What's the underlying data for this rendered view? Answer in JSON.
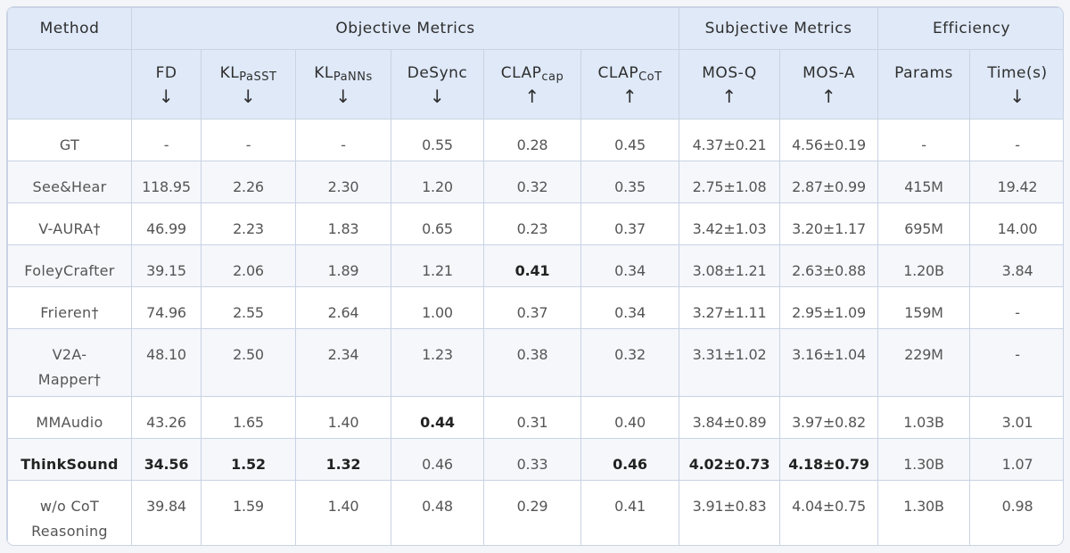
{
  "header": {
    "method": "Method",
    "groups": {
      "objective": "Objective Metrics",
      "subjective": "Subjective Metrics",
      "efficiency": "Efficiency"
    },
    "columns": [
      {
        "base": "FD",
        "sub": "",
        "arrow": "↓"
      },
      {
        "base": "KL",
        "sub": "PaSST",
        "arrow": "↓"
      },
      {
        "base": "KL",
        "sub": "PaNNs",
        "arrow": "↓"
      },
      {
        "base": "DeSync",
        "sub": "",
        "arrow": "↓"
      },
      {
        "base": "CLAP",
        "sub": "cap",
        "arrow": "↑"
      },
      {
        "base": "CLAP",
        "sub": "CoT",
        "arrow": "↑"
      },
      {
        "base": "MOS-Q",
        "sub": "",
        "arrow": "↑"
      },
      {
        "base": "MOS-A",
        "sub": "",
        "arrow": "↑"
      },
      {
        "base": "Params",
        "sub": "",
        "arrow": ""
      },
      {
        "base": "Time(s)",
        "sub": "",
        "arrow": "↓"
      }
    ]
  },
  "rows": [
    {
      "method": "GT",
      "values": [
        "-",
        "-",
        "-",
        "0.55",
        "0.28",
        "0.45",
        "4.37±0.21",
        "4.56±0.19",
        "-",
        "-"
      ],
      "bold": []
    },
    {
      "method": "See&Hear",
      "values": [
        "118.95",
        "2.26",
        "2.30",
        "1.20",
        "0.32",
        "0.35",
        "2.75±1.08",
        "2.87±0.99",
        "415M",
        "19.42"
      ],
      "bold": []
    },
    {
      "method": "V-AURA†",
      "values": [
        "46.99",
        "2.23",
        "1.83",
        "0.65",
        "0.23",
        "0.37",
        "3.42±1.03",
        "3.20±1.17",
        "695M",
        "14.00"
      ],
      "bold": []
    },
    {
      "method": "FoleyCrafter",
      "values": [
        "39.15",
        "2.06",
        "1.89",
        "1.21",
        "0.41",
        "0.34",
        "3.08±1.21",
        "2.63±0.88",
        "1.20B",
        "3.84"
      ],
      "bold": [
        4
      ]
    },
    {
      "method": "Frieren†",
      "values": [
        "74.96",
        "2.55",
        "2.64",
        "1.00",
        "0.37",
        "0.34",
        "3.27±1.11",
        "2.95±1.09",
        "159M",
        "-"
      ],
      "bold": []
    },
    {
      "method": "V2A-\nMapper†",
      "values": [
        "48.10",
        "2.50",
        "2.34",
        "1.23",
        "0.38",
        "0.32",
        "3.31±1.02",
        "3.16±1.04",
        "229M",
        "-"
      ],
      "bold": [],
      "tall": true
    },
    {
      "method": "MMAudio",
      "values": [
        "43.26",
        "1.65",
        "1.40",
        "0.44",
        "0.31",
        "0.40",
        "3.84±0.89",
        "3.97±0.82",
        "1.03B",
        "3.01"
      ],
      "bold": [
        3
      ]
    },
    {
      "method": "ThinkSound",
      "values": [
        "34.56",
        "1.52",
        "1.32",
        "0.46",
        "0.33",
        "0.46",
        "4.02±0.73",
        "4.18±0.79",
        "1.30B",
        "1.07"
      ],
      "bold": [
        0,
        1,
        2,
        5,
        6,
        7
      ],
      "highlight": true
    },
    {
      "method": "w/o CoT\nReasoning",
      "values": [
        "39.84",
        "1.59",
        "1.40",
        "0.48",
        "0.29",
        "0.41",
        "3.91±0.83",
        "4.04±0.75",
        "1.30B",
        "0.98"
      ],
      "bold": [],
      "tall": true
    }
  ]
}
